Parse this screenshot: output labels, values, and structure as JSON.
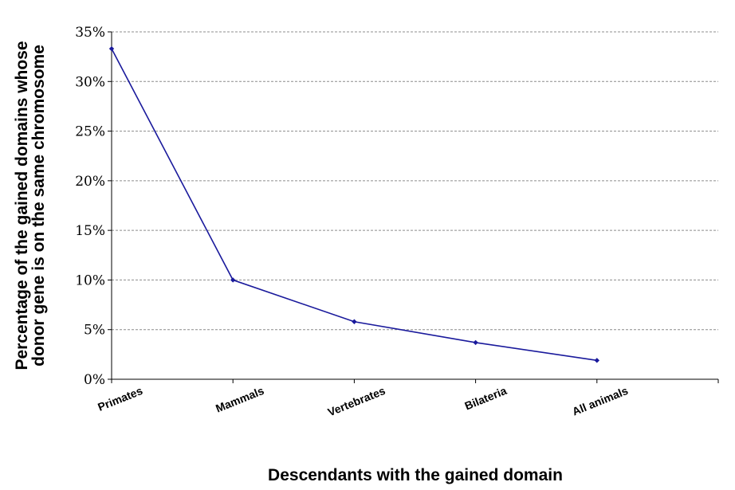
{
  "chart_data": {
    "type": "line",
    "title": "",
    "xlabel": "Descendants with the gained domain",
    "ylabel_lines": [
      "Percentage of the gained domains whose",
      "donor gene is on the same chromosome"
    ],
    "categories": [
      "Primates",
      "Mammals",
      "Vertebrates",
      "Bilateria",
      "All animals"
    ],
    "series": [
      {
        "name": "",
        "values": [
          0.333,
          0.1,
          0.058,
          0.037,
          0.019
        ],
        "color": "#1a1a9c"
      }
    ],
    "ylim": [
      0,
      0.35
    ],
    "yticks": [
      0,
      0.05,
      0.1,
      0.15,
      0.2,
      0.25,
      0.3,
      0.35
    ],
    "ytick_labels": [
      "0%",
      "5%",
      "10%",
      "15%",
      "20%",
      "25%",
      "30%",
      "35%"
    ],
    "grid": true,
    "legend": "none"
  }
}
